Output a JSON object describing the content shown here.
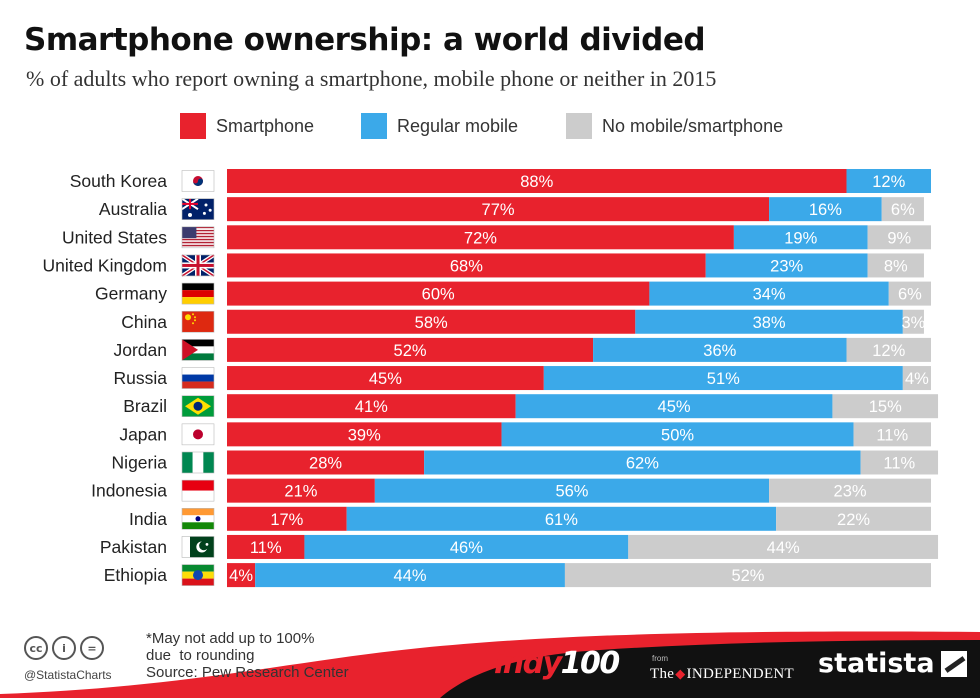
{
  "header": {
    "title": "Smartphone ownership: a world divided",
    "subtitle": "% of adults who report owning a smartphone, mobile phone or neither in 2015"
  },
  "legend": [
    {
      "label": "Smartphone",
      "color": "#e8222d"
    },
    {
      "label": "Regular mobile",
      "color": "#3ba9e9"
    },
    {
      "label": "No mobile/smartphone",
      "color": "#cccccc"
    }
  ],
  "chart_data": {
    "type": "bar",
    "orientation": "horizontal",
    "stacked": true,
    "title": "Smartphone ownership: a world divided",
    "subtitle": "% of adults who report owning a smartphone, mobile phone or neither in 2015",
    "legend_position": "top",
    "grid": false,
    "categories": [
      "South Korea",
      "Australia",
      "United States",
      "United Kingdom",
      "Germany",
      "China",
      "Jordan",
      "Russia",
      "Brazil",
      "Japan",
      "Nigeria",
      "Indonesia",
      "India",
      "Pakistan",
      "Ethiopia"
    ],
    "series": [
      {
        "name": "Smartphone",
        "color": "#e8222d",
        "values": [
          88,
          77,
          72,
          68,
          60,
          58,
          52,
          45,
          41,
          39,
          28,
          21,
          17,
          11,
          4
        ]
      },
      {
        "name": "Regular mobile",
        "color": "#3ba9e9",
        "values": [
          12,
          16,
          19,
          23,
          34,
          38,
          36,
          51,
          45,
          50,
          62,
          56,
          61,
          46,
          44
        ]
      },
      {
        "name": "No mobile/smartphone",
        "color": "#cccccc",
        "values": [
          null,
          6,
          9,
          8,
          6,
          3,
          12,
          4,
          15,
          11,
          11,
          23,
          22,
          44,
          52
        ]
      }
    ],
    "value_suffix": "%",
    "flag_icons": [
      "south-korea-flag-icon",
      "australia-flag-icon",
      "united-states-flag-icon",
      "united-kingdom-flag-icon",
      "germany-flag-icon",
      "china-flag-icon",
      "jordan-flag-icon",
      "russia-flag-icon",
      "brazil-flag-icon",
      "japan-flag-icon",
      "nigeria-flag-icon",
      "indonesia-flag-icon",
      "india-flag-icon",
      "pakistan-flag-icon",
      "ethiopia-flag-icon"
    ]
  },
  "footer": {
    "note_lines": [
      "*May not add up to 100%",
      "due  to rounding",
      "Source: Pew Research Center"
    ],
    "handle": "@StatistaCharts",
    "license_icons": [
      "cc",
      "i",
      "="
    ],
    "brand_indy_a": "indy",
    "brand_indy_b": "100",
    "brand_from": "from",
    "brand_the": "The",
    "brand_independent": "INDEPENDENT",
    "brand_statista": "statista",
    "band_color": "#e8222d"
  }
}
